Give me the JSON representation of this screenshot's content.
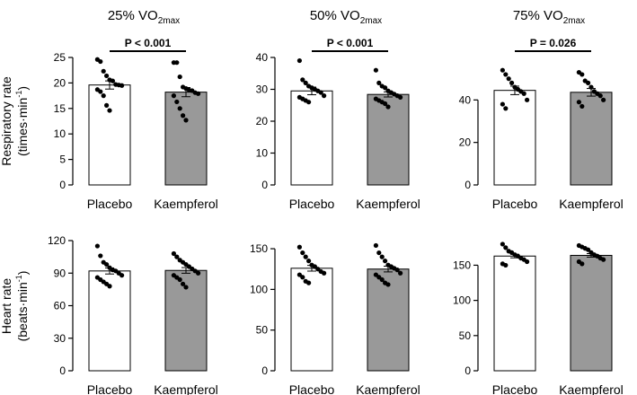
{
  "chart_data": {
    "type": "bar",
    "categories": [
      "Placebo",
      "Kaempferol"
    ],
    "columns": [
      {
        "prefix": "25% VO",
        "sub": "2max"
      },
      {
        "prefix": "50% VO",
        "sub": "2max"
      },
      {
        "prefix": "75% VO",
        "sub": "2max"
      }
    ],
    "rows": [
      {
        "ylabel_line1": "Respiratory rate",
        "ylabel_line2_main": "(times·min",
        "ylabel_line2_sup": "-1",
        "ylabel_line2_end": ")"
      },
      {
        "ylabel_line1": "Heart rate",
        "ylabel_line2_main": "(beats·min",
        "ylabel_line2_sup": "-1",
        "ylabel_line2_end": ")"
      }
    ],
    "panels": [
      {
        "row": 0,
        "col": 0,
        "ylim": [
          0,
          25
        ],
        "yticks": [
          0,
          5,
          10,
          15,
          20,
          25
        ],
        "means": [
          19.6,
          18.2
        ],
        "sem": [
          0.8,
          0.9
        ],
        "points": [
          [
            24.6,
            24.2,
            22.3,
            21.4,
            20.6,
            20.4,
            19.7,
            19.6,
            19.5,
            18.7,
            18.3,
            17.5,
            15.6,
            14.6
          ],
          [
            24.0,
            24.0,
            21.2,
            19.2,
            18.9,
            18.6,
            18.5,
            18.1,
            17.9,
            17.5,
            16.3,
            15.0,
            13.6,
            12.7
          ]
        ],
        "pvalue": "P < 0.001"
      },
      {
        "row": 0,
        "col": 1,
        "ylim": [
          0,
          40
        ],
        "yticks": [
          0,
          10,
          20,
          30,
          40
        ],
        "means": [
          29.5,
          28.4
        ],
        "sem": [
          1.2,
          0.8
        ],
        "points": [
          [
            39.0,
            33.0,
            32.0,
            31.0,
            30.5,
            30.0,
            29.5,
            29.0,
            28.0,
            27.5,
            27.0,
            26.5,
            26.0
          ],
          [
            36.0,
            32.0,
            31.0,
            30.5,
            29.5,
            29.0,
            28.5,
            28.0,
            27.5,
            27.0,
            26.5,
            26.0,
            25.5,
            24.5
          ]
        ],
        "pvalue": "P < 0.001"
      },
      {
        "row": 0,
        "col": 2,
        "ylim": [
          0,
          60
        ],
        "yticks": [
          0,
          20,
          40
        ],
        "means": [
          44.5,
          43.6
        ],
        "sem": [
          2.0,
          1.8
        ],
        "points": [
          [
            54.0,
            52.0,
            50.0,
            48.0,
            46.0,
            45.0,
            44.0,
            43.0,
            40.0,
            38.0,
            36.0
          ],
          [
            53.0,
            52.0,
            49.0,
            48.0,
            46.0,
            44.0,
            43.0,
            42.0,
            40.0,
            39.0,
            37.0
          ]
        ],
        "pvalue": "P = 0.026"
      },
      {
        "row": 1,
        "col": 0,
        "ylim": [
          0,
          120
        ],
        "yticks": [
          0,
          30,
          60,
          90,
          120
        ],
        "means": [
          92.0,
          92.5
        ],
        "sem": [
          2.8,
          2.6
        ],
        "points": [
          [
            115,
            106,
            100,
            98,
            95,
            93,
            92,
            90,
            88,
            86,
            84,
            82,
            80,
            78
          ],
          [
            108,
            105,
            102,
            100,
            98,
            96,
            94,
            92,
            90,
            88,
            86,
            84,
            80,
            77
          ]
        ],
        "pvalue": ""
      },
      {
        "row": 1,
        "col": 1,
        "ylim": [
          0,
          160
        ],
        "yticks": [
          0,
          50,
          100,
          150
        ],
        "means": [
          126.0,
          125.0
        ],
        "sem": [
          3.5,
          3.5
        ],
        "points": [
          [
            152,
            145,
            140,
            135,
            130,
            128,
            125,
            122,
            120,
            118,
            115,
            110,
            108
          ],
          [
            154,
            145,
            140,
            135,
            130,
            128,
            126,
            124,
            120,
            118,
            115,
            112,
            108,
            106
          ]
        ],
        "pvalue": ""
      },
      {
        "row": 1,
        "col": 2,
        "ylim": [
          0,
          185
        ],
        "yticks": [
          0,
          50,
          100,
          150
        ],
        "means": [
          163.0,
          164.0
        ],
        "sem": [
          2.5,
          2.5
        ],
        "points": [
          [
            180,
            175,
            170,
            168,
            165,
            163,
            160,
            158,
            155,
            152,
            150
          ],
          [
            178,
            176,
            174,
            172,
            168,
            165,
            163,
            160,
            158,
            155,
            152
          ]
        ],
        "pvalue": ""
      }
    ],
    "colors": {
      "placebo_fill": "#ffffff",
      "kaempferol_fill": "#999999",
      "stroke": "#000000",
      "dot": "#000000"
    }
  }
}
